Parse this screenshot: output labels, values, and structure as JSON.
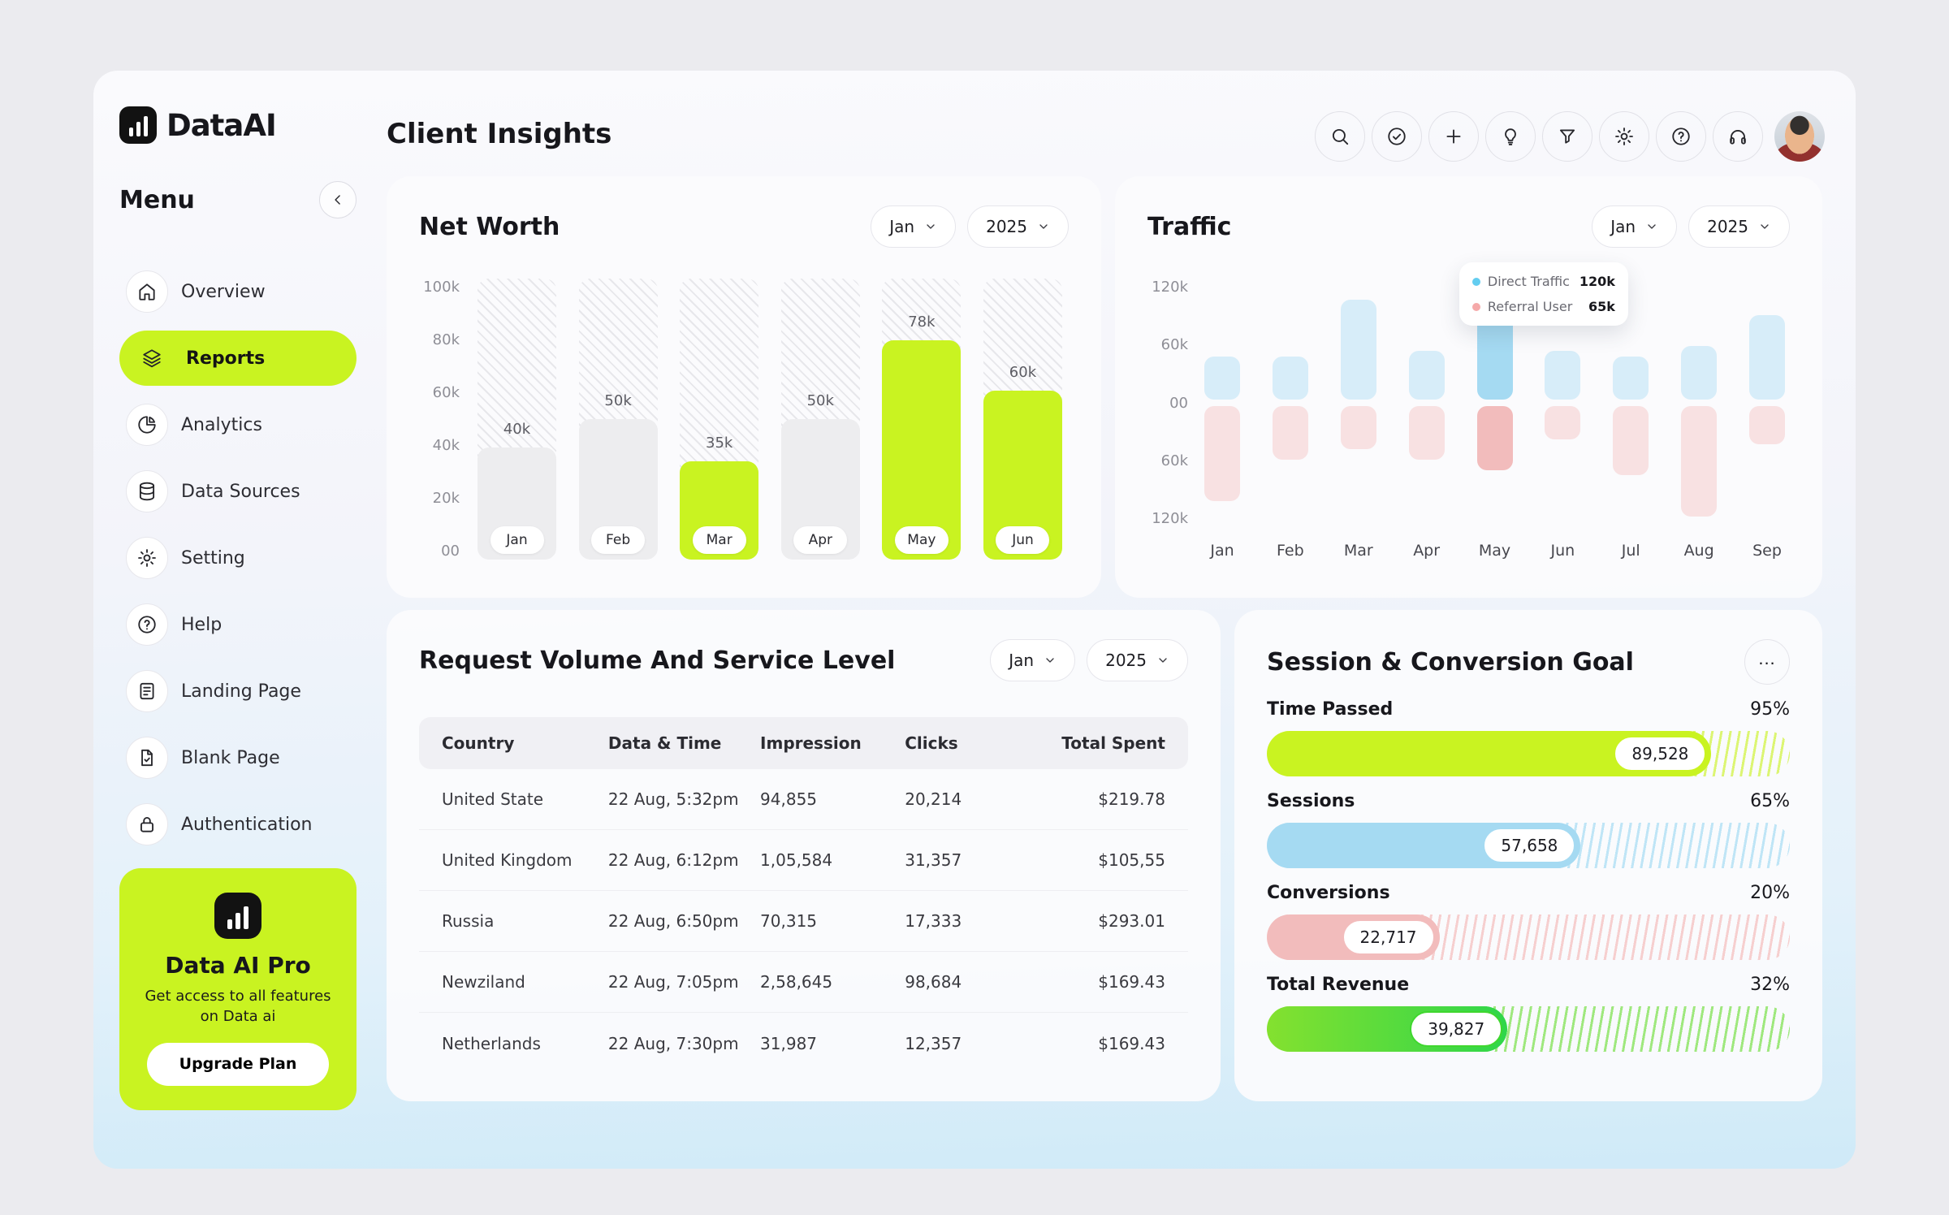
{
  "app": {
    "logo_text": "DataAI",
    "menu_title": "Menu"
  },
  "header": {
    "title": "Client Insights",
    "actions": [
      "search",
      "verify",
      "add",
      "idea",
      "filter",
      "settings",
      "help",
      "support",
      "profile"
    ]
  },
  "sidebar": {
    "items": [
      {
        "label": "Overview",
        "active": false
      },
      {
        "label": "Reports",
        "active": true
      },
      {
        "label": "Analytics",
        "active": false
      },
      {
        "label": "Data Sources",
        "active": false
      },
      {
        "label": "Setting",
        "active": false
      },
      {
        "label": "Help",
        "active": false
      },
      {
        "label": "Landing Page",
        "active": false
      },
      {
        "label": "Blank Page",
        "active": false
      },
      {
        "label": "Authentication",
        "active": false
      }
    ],
    "promo": {
      "title": "Data AI Pro",
      "description": "Get access to all features on Data ai",
      "button": "Upgrade Plan"
    }
  },
  "net_worth": {
    "title": "Net Worth",
    "month": "Jan",
    "year": "2025",
    "chart": {
      "type": "bar",
      "unit": "k",
      "ylim": [
        0,
        100
      ],
      "y_labels": [
        "100k",
        "80k",
        "60k",
        "40k",
        "20k",
        "00"
      ],
      "categories": [
        "Jan",
        "Feb",
        "Mar",
        "Apr",
        "May",
        "Jun"
      ],
      "values": [
        40,
        50,
        35,
        50,
        78,
        60
      ],
      "value_labels": [
        "40k",
        "50k",
        "35k",
        "50k",
        "78k",
        "60k"
      ],
      "styles": [
        "gray",
        "gray",
        "lime",
        "gray",
        "lime",
        "lime"
      ]
    }
  },
  "traffic": {
    "title": "Traffic",
    "month": "Jan",
    "year": "2025",
    "chart": {
      "type": "diverging-bar",
      "max": 120,
      "y_labels": [
        "120k",
        "60k",
        "00",
        "60k",
        "120k"
      ],
      "categories": [
        "Jan",
        "Feb",
        "Mar",
        "Apr",
        "May",
        "Jun",
        "Jul",
        "Aug",
        "Sep"
      ],
      "series": [
        {
          "name": "Direct Traffic",
          "values": [
            45,
            45,
            100,
            50,
            120,
            50,
            45,
            55,
            85
          ]
        },
        {
          "name": "Referral User",
          "values": [
            95,
            55,
            45,
            55,
            65,
            35,
            70,
            110,
            40
          ]
        }
      ],
      "highlight": "May"
    },
    "tooltip": {
      "rows": [
        {
          "label": "Direct Traffic",
          "value": "120k"
        },
        {
          "label": "Referral User",
          "value": "65k"
        }
      ]
    }
  },
  "request_volume": {
    "title": "Request Volume And Service Level",
    "month": "Jan",
    "year": "2025",
    "columns": [
      "Country",
      "Data & Time",
      "Impression",
      "Clicks",
      "Total Spent"
    ],
    "rows": [
      [
        "United State",
        "22 Aug, 5:32pm",
        "94,855",
        "20,214",
        "$219.78"
      ],
      [
        "United Kingdom",
        "22 Aug, 6:12pm",
        "1,05,584",
        "31,357",
        "$105,55"
      ],
      [
        "Russia",
        "22 Aug, 6:50pm",
        "70,315",
        "17,333",
        "$293.01"
      ],
      [
        "Newziland",
        "22 Aug, 7:05pm",
        "2,58,645",
        "98,684",
        "$169.43"
      ],
      [
        "Netherlands",
        "22 Aug, 7:30pm",
        "31,987",
        "12,357",
        "$169.43"
      ]
    ]
  },
  "session_goals": {
    "title": "Session & Conversion Goal",
    "metrics": [
      {
        "label": "Time Passed",
        "percent": "95%",
        "value": "89,528",
        "color": "lime",
        "fill_pct": 85
      },
      {
        "label": "Sessions",
        "percent": "65%",
        "value": "57,658",
        "color": "blue",
        "fill_pct": 60
      },
      {
        "label": "Conversions",
        "percent": "20%",
        "value": "22,717",
        "color": "pink",
        "fill_pct": 33
      },
      {
        "label": "Total Revenue",
        "percent": "32%",
        "value": "39,827",
        "color": "green",
        "fill_pct": 46
      }
    ]
  },
  "colors": {
    "accent_lime": "#c9f321",
    "blue": "#a5daf2",
    "pink": "#f2bcbc",
    "green": "#3fd72e"
  }
}
